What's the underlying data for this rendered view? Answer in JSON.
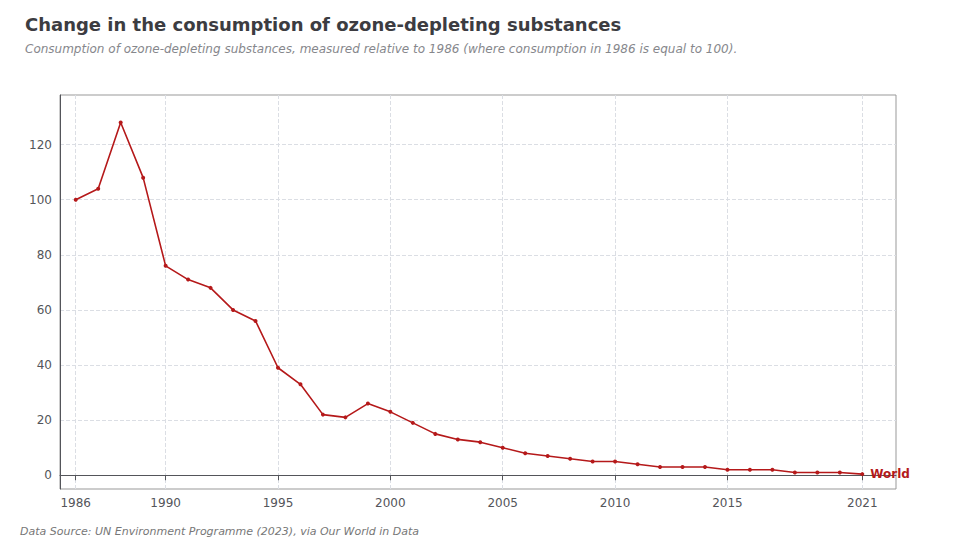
{
  "chart_data": {
    "type": "line",
    "title": "Change in the consumption of ozone-depleting substances",
    "subtitle": "Consumption of ozone-depleting substances, measured relative to 1986 (where consumption in 1986 is equal to 100).",
    "source": "Data Source: UN Environment Programme (2023), via Our World in Data",
    "x": [
      1986,
      1987,
      1988,
      1989,
      1990,
      1991,
      1992,
      1993,
      1994,
      1995,
      1996,
      1997,
      1998,
      1999,
      2000,
      2001,
      2002,
      2003,
      2004,
      2005,
      2006,
      2007,
      2008,
      2009,
      2010,
      2011,
      2012,
      2013,
      2014,
      2015,
      2016,
      2017,
      2018,
      2019,
      2020,
      2021
    ],
    "series": [
      {
        "name": "World",
        "color": "#b5191a",
        "marker": "circle",
        "values": [
          100,
          104,
          128,
          108,
          76,
          71,
          68,
          60,
          56,
          39,
          33,
          22,
          21,
          26,
          23,
          19,
          15,
          13,
          12,
          10,
          8,
          7,
          6,
          5,
          5,
          4,
          3,
          3,
          3,
          2,
          2,
          2,
          1,
          1,
          1,
          0.4
        ]
      }
    ],
    "xlim": [
      1985.3,
      2022.5
    ],
    "xticks": [
      1986,
      1990,
      1995,
      2000,
      2005,
      2010,
      2015,
      2021
    ],
    "ylim": [
      -5,
      138
    ],
    "yticks": [
      0,
      20,
      40,
      60,
      80,
      100,
      120
    ],
    "grid": true
  }
}
